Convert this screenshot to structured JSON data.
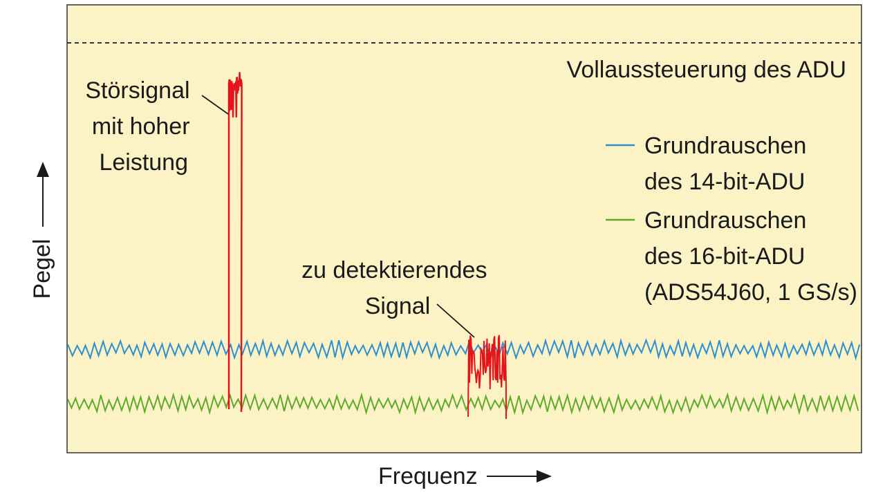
{
  "labels": {
    "y_axis": "Pegel",
    "x_axis": "Frequenz",
    "full_scale": "Vollaussteuerung des ADU",
    "interferer": [
      "Störsignal",
      "mit hoher",
      "Leistung"
    ],
    "target": [
      "zu detektierendes",
      "Signal"
    ]
  },
  "legend": [
    {
      "lines": [
        "Grundrauschen",
        "des 14-bit-ADU"
      ],
      "color": "#2b8fd0"
    },
    {
      "lines": [
        "Grundrauschen",
        "des 16-bit-ADU",
        "(ADS54J60, 1 GS/s)"
      ],
      "color": "#5faa2a"
    }
  ],
  "colors": {
    "background": "#fbf2c5",
    "frame": "#333333",
    "noise_14bit": "#2b8fd0",
    "noise_16bit": "#5faa2a",
    "signal": "#e5141a"
  },
  "icons": {
    "y_arrow": "arrow-up-icon",
    "x_arrow": "arrow-right-icon"
  }
}
